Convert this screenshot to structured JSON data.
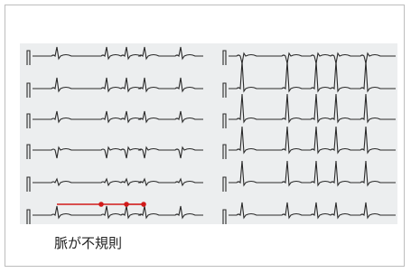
{
  "caption": "脈が不規則"
}
